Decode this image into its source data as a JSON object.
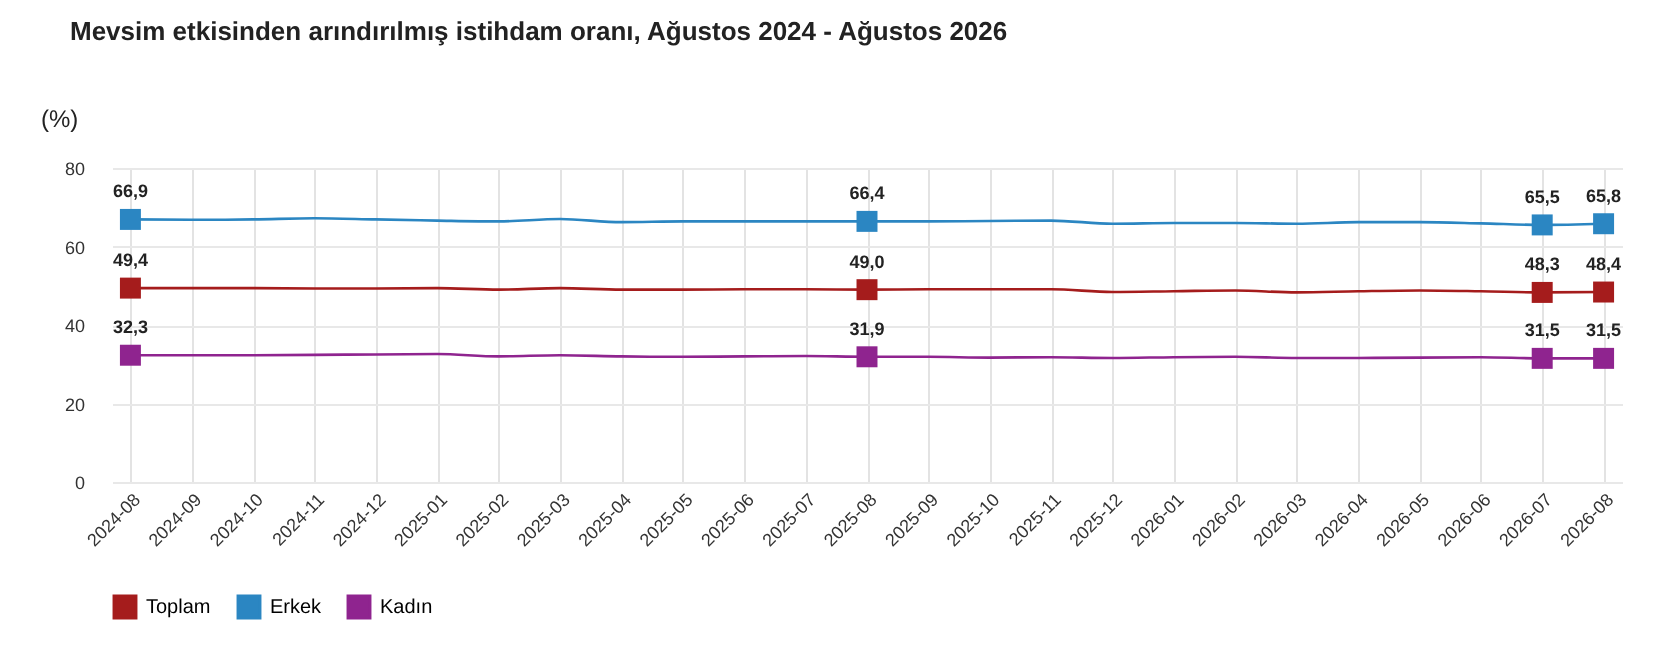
{
  "chart_data": {
    "type": "line",
    "title": "Mevsim etkisinden arındırılmış istihdam oranı, Ağustos 2024 - Ağustos 2026",
    "ylabel": "(%)",
    "categories": [
      "2024-08",
      "2024-09",
      "2024-10",
      "2024-11",
      "2024-12",
      "2025-01",
      "2025-02",
      "2025-03",
      "2025-04",
      "2025-05",
      "2025-06",
      "2025-07",
      "2025-08",
      "2025-09",
      "2025-10",
      "2025-11",
      "2025-12",
      "2026-01",
      "2026-02",
      "2026-03",
      "2026-04",
      "2026-05",
      "2026-06",
      "2026-07",
      "2026-08"
    ],
    "series": [
      {
        "name": "Toplam",
        "color": "#a51c1c",
        "values": [
          49.4,
          49.4,
          49.4,
          49.3,
          49.3,
          49.4,
          49.0,
          49.4,
          49.0,
          49.0,
          49.1,
          49.1,
          49.0,
          49.1,
          49.1,
          49.1,
          48.4,
          48.6,
          48.8,
          48.3,
          48.6,
          48.8,
          48.6,
          48.3,
          48.4
        ],
        "value_labels": [
          "49,4",
          null,
          null,
          null,
          null,
          null,
          null,
          null,
          null,
          null,
          null,
          null,
          "49,0",
          null,
          null,
          null,
          null,
          null,
          null,
          null,
          null,
          null,
          null,
          "48,3",
          "48,4"
        ]
      },
      {
        "name": "Erkek",
        "color": "#2b86c2",
        "values": [
          66.9,
          66.8,
          66.9,
          67.2,
          66.9,
          66.6,
          66.4,
          67.0,
          66.2,
          66.4,
          66.4,
          66.4,
          66.4,
          66.4,
          66.5,
          66.6,
          65.8,
          66.0,
          66.0,
          65.8,
          66.2,
          66.2,
          65.9,
          65.5,
          65.8
        ],
        "value_labels": [
          "66,9",
          null,
          null,
          null,
          null,
          null,
          null,
          null,
          null,
          null,
          null,
          null,
          "66,4",
          null,
          null,
          null,
          null,
          null,
          null,
          null,
          null,
          null,
          null,
          "65,5",
          "65,8"
        ]
      },
      {
        "name": "Kadın",
        "color": "#8f248f",
        "values": [
          32.3,
          32.3,
          32.3,
          32.4,
          32.5,
          32.6,
          32.0,
          32.3,
          32.0,
          31.9,
          32.0,
          32.1,
          31.9,
          31.9,
          31.7,
          31.8,
          31.6,
          31.8,
          31.9,
          31.6,
          31.6,
          31.7,
          31.8,
          31.5,
          31.5
        ],
        "value_labels": [
          "32,3",
          null,
          null,
          null,
          null,
          null,
          null,
          null,
          null,
          null,
          null,
          null,
          "31,9",
          null,
          null,
          null,
          null,
          null,
          null,
          null,
          null,
          null,
          null,
          "31,5",
          "31,5"
        ]
      }
    ],
    "ylim": [
      0,
      80
    ],
    "yticks": [
      0,
      20,
      40,
      60,
      80
    ],
    "grid": true,
    "legend": "bottom",
    "line_style": "solid"
  }
}
